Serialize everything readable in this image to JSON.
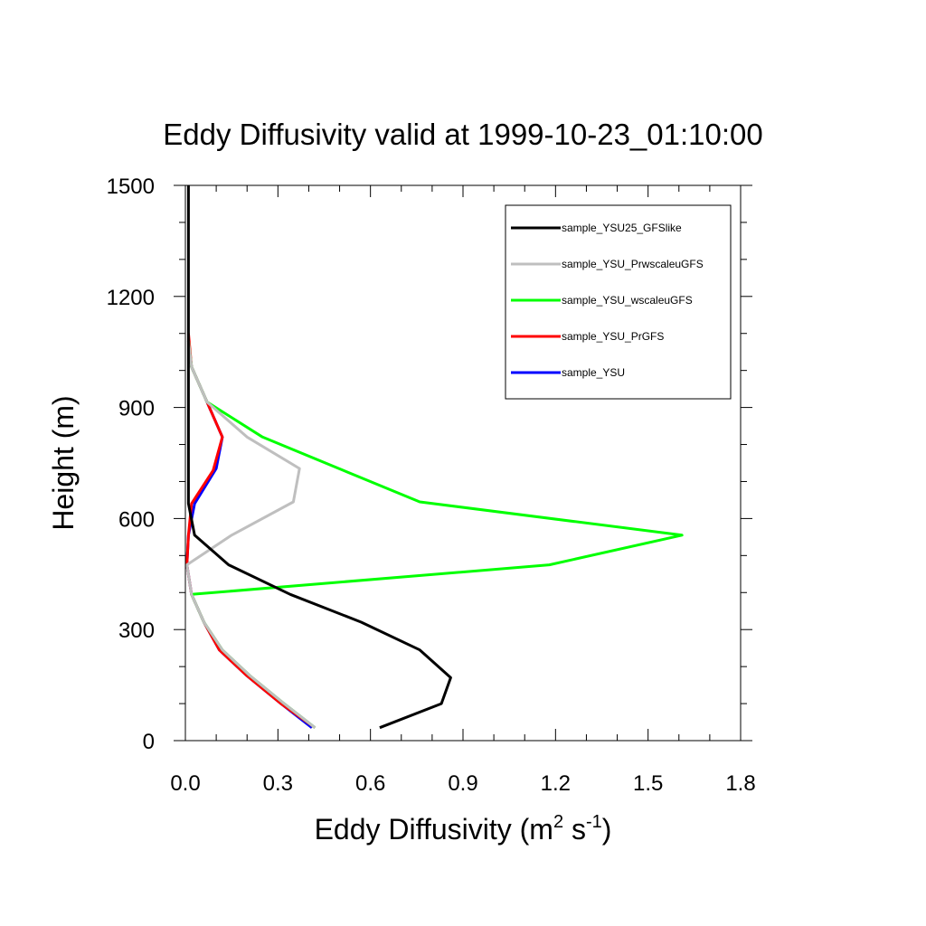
{
  "chart_data": {
    "type": "line",
    "title": "Eddy Diffusivity valid at 1999-10-23_01:10:00",
    "xlabel": {
      "base": "Eddy Diffusivity (m",
      "sup1": "2",
      "mid": " s",
      "sup2": "-1",
      "end": ")"
    },
    "ylabel": "Height (m)",
    "xlim": [
      0.0,
      1.8
    ],
    "ylim": [
      0,
      1500
    ],
    "xticks": [
      "0.0",
      "0.3",
      "0.6",
      "0.9",
      "1.2",
      "1.5",
      "1.8"
    ],
    "xtick_values": [
      0.0,
      0.3,
      0.6,
      0.9,
      1.2,
      1.5,
      1.8
    ],
    "yticks": [
      "0",
      "300",
      "600",
      "900",
      "1200",
      "1500"
    ],
    "ytick_values": [
      0,
      300,
      600,
      900,
      1200,
      1500
    ],
    "legend_position": "top-right",
    "series": [
      {
        "name": "sample_YSU25_GFSlike",
        "color": "#000000",
        "x": [
          0.63,
          0.83,
          0.86,
          0.76,
          0.57,
          0.34,
          0.14,
          0.03,
          0.01,
          0.01,
          0.01,
          0.01,
          0.01,
          0.01
        ],
        "y": [
          35,
          100,
          170,
          245,
          320,
          395,
          475,
          555,
          640,
          900,
          1000,
          1200,
          1400,
          1500
        ]
      },
      {
        "name": "sample_YSU_PrwscaleuGFS",
        "color": "#bfbfbf",
        "x": [
          0.42,
          0.32,
          0.21,
          0.12,
          0.06,
          0.02,
          0.005,
          0.15,
          0.35,
          0.37,
          0.2,
          0.07,
          0.02,
          0.01
        ],
        "y": [
          35,
          100,
          175,
          245,
          320,
          395,
          475,
          555,
          645,
          735,
          820,
          915,
          1010,
          1080
        ]
      },
      {
        "name": "sample_YSU_wscaleuGFS",
        "color": "#00ff00",
        "x": [
          0.42,
          0.32,
          0.21,
          0.12,
          0.06,
          0.02,
          1.18,
          1.61,
          0.76,
          0.25,
          0.07,
          0.02,
          0.01
        ],
        "y": [
          35,
          100,
          175,
          245,
          320,
          395,
          475,
          555,
          645,
          820,
          915,
          1010,
          1080
        ]
      },
      {
        "name": "sample_YSU_PrGFS",
        "color": "#ff0000",
        "x": [
          0.42,
          0.31,
          0.2,
          0.11,
          0.06,
          0.02,
          0.005,
          0.01,
          0.02,
          0.09,
          0.12,
          0.07,
          0.02,
          0.01
        ],
        "y": [
          35,
          100,
          175,
          245,
          320,
          395,
          475,
          555,
          640,
          730,
          820,
          915,
          1010,
          1100
        ]
      },
      {
        "name": "sample_YSU",
        "color": "#0000ff",
        "x": [
          0.41,
          0.31,
          0.2,
          0.11,
          0.06,
          0.02,
          0.005,
          0.01,
          0.03,
          0.1,
          0.12,
          0.07,
          0.02,
          0.01
        ],
        "y": [
          35,
          100,
          175,
          245,
          320,
          395,
          475,
          555,
          640,
          735,
          820,
          915,
          1010,
          1080
        ]
      }
    ]
  }
}
